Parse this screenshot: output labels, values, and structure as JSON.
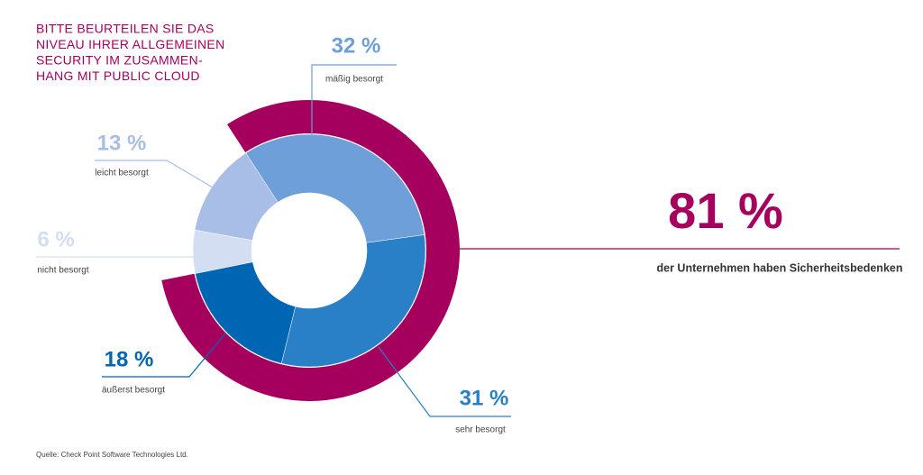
{
  "chart_data": {
    "type": "pie",
    "title": [
      "BITTE BEURTEILEN SIE DAS",
      "NIVEAU IHRER ALLGEMEINEN",
      "SECURITY IM ZUSAMMEN-",
      "HANG MIT PUBLIC CLOUD"
    ],
    "categories": [
      "mäßig besorgt",
      "sehr besorgt",
      "äußerst besorgt",
      "nicht besorgt",
      "leicht besorgt"
    ],
    "values": [
      32,
      31,
      18,
      6,
      13
    ],
    "value_labels": [
      "32 %",
      "31 %",
      "18 %",
      "6 %",
      "13 %"
    ],
    "colors": [
      "#6e9fd8",
      "#2a80c6",
      "#0066b3",
      "#d3def3",
      "#a8bee6"
    ],
    "highlight": {
      "value": 81,
      "value_label": "81 %",
      "text": "der Unternehmen haben Sicherheitsbedenken",
      "color": "#a5005e"
    },
    "source": "Quelle: Check Point Software Technologies Ltd."
  }
}
